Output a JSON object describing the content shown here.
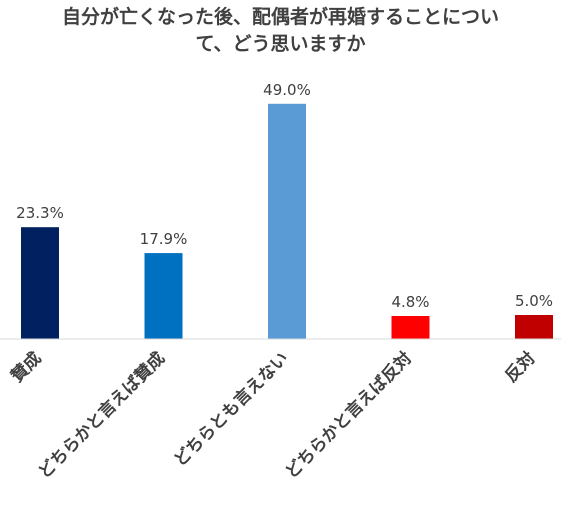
{
  "chart_data": {
    "type": "bar",
    "title_lines": [
      "自分が亡くなった後、配偶者が再婚することについ",
      "て、どう思いますか"
    ],
    "categories": [
      "賛成",
      "どちらかと言えば賛成",
      "どちらとも言えない",
      "どちらかと言えば反対",
      "反対"
    ],
    "values": [
      23.3,
      17.9,
      49.0,
      4.8,
      5.0
    ],
    "value_labels": [
      "23.3%",
      "17.9%",
      "49.0%",
      "4.8%",
      "5.0%"
    ],
    "unit": "%",
    "colors": [
      "#002060",
      "#0070C0",
      "#5B9BD5",
      "#FF0000",
      "#C00000"
    ],
    "ylim": [
      0,
      55
    ],
    "xlabel": "",
    "ylabel": "",
    "grid": false,
    "legend": "none"
  }
}
